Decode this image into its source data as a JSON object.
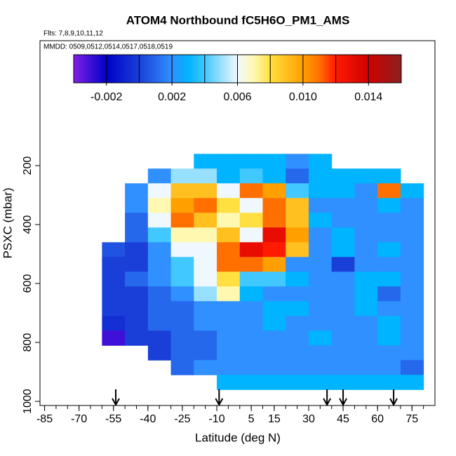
{
  "chart_data": {
    "type": "heatmap",
    "title": "ATOM4 Northbound fC5H6O_PM1_AMS",
    "subtitle": "Flts: 7,8,9,10,11,12",
    "annotation": "MMDD: 0509,0512,0514,0517,0518,0519",
    "x_label": "Latitude (deg N)",
    "y_label": "PSXC (mbar)",
    "xlim": [
      -87,
      85
    ],
    "ylim": [
      1014,
      -224
    ],
    "xticks": [
      -85,
      -70,
      -55,
      -40,
      -25,
      -10,
      5,
      15,
      30,
      45,
      60,
      75
    ],
    "xminorticks": [
      -85,
      -80,
      -75,
      -70,
      -65,
      -60,
      -55,
      -50,
      -45,
      -40,
      -35,
      -30,
      -25,
      -20,
      -15,
      -10,
      -5,
      0,
      5,
      10,
      15,
      20,
      25,
      30,
      35,
      40,
      45,
      50,
      55,
      60,
      65,
      70,
      75,
      80
    ],
    "yticks": [
      200,
      400,
      600,
      800,
      1000
    ],
    "x_edges": [
      -60,
      -50,
      -40,
      -30,
      -20,
      -10,
      0,
      10,
      20,
      30,
      40,
      50,
      60,
      70,
      80
    ],
    "y_edges": [
      160,
      210,
      260,
      310,
      360,
      410,
      460,
      510,
      560,
      610,
      660,
      710,
      760,
      810,
      860,
      910,
      960
    ],
    "z": [
      [
        null,
        null,
        null,
        null,
        0.003,
        0.003,
        0.003,
        0.003,
        0.002,
        0.003,
        null,
        null,
        null,
        null
      ],
      [
        null,
        null,
        0.002,
        0.005,
        0.005,
        0.003,
        0.004,
        0.003,
        0.001,
        0.003,
        0.003,
        0.003,
        0.003,
        null
      ],
      [
        null,
        0.002,
        0.006,
        0.009,
        0.009,
        0.006,
        0.011,
        0.01,
        0.004,
        0.003,
        0.003,
        0.002,
        0.011,
        0.003
      ],
      [
        null,
        0.002,
        0.007,
        0.01,
        0.011,
        0.008,
        0.006,
        0.011,
        0.009,
        0.002,
        0.002,
        0.002,
        0.003,
        0.002
      ],
      [
        null,
        0.001,
        0.006,
        0.011,
        0.009,
        0.007,
        0.008,
        0.011,
        0.009,
        0.003,
        0.002,
        0.002,
        0.002,
        0.002
      ],
      [
        null,
        0.001,
        0.004,
        0.007,
        0.007,
        0.009,
        0.006,
        0.013,
        0.01,
        0.002,
        0.003,
        0.002,
        0.002,
        0.002
      ],
      [
        0.0005,
        0,
        0.002,
        0.006,
        0.006,
        0.011,
        0.013,
        0.012,
        0.009,
        0.002,
        0.003,
        0.002,
        0.003,
        0.002
      ],
      [
        0,
        0,
        0.002,
        0.004,
        0.006,
        0.011,
        0.011,
        0.01,
        0.002,
        0.002,
        0,
        0.002,
        0.002,
        0.002
      ],
      [
        0,
        0.001,
        0.002,
        0.004,
        0.006,
        0.008,
        0.004,
        0.004,
        0.003,
        0.002,
        0.002,
        0.003,
        0.003,
        0.002
      ],
      [
        0,
        0,
        0.001,
        0.002,
        0.005,
        0.007,
        0.003,
        0.002,
        0.002,
        0.002,
        0.002,
        0.003,
        0.001,
        0.002
      ],
      [
        0,
        0,
        0.001,
        0.001,
        0.002,
        0.002,
        0.002,
        0.003,
        0.003,
        0.002,
        0.002,
        0.003,
        0.002,
        0.002
      ],
      [
        -0.0005,
        0,
        0.001,
        0.001,
        0.002,
        0.002,
        0.002,
        0.003,
        0.002,
        0.002,
        0.002,
        0.002,
        0.003,
        0.002
      ],
      [
        -0.003,
        0,
        0,
        0.001,
        0.001,
        0.002,
        0.002,
        0.002,
        0.002,
        0.003,
        0.002,
        0.002,
        0.003,
        0.002
      ],
      [
        null,
        null,
        0,
        0.001,
        0.001,
        0.002,
        0.002,
        0.002,
        0.002,
        0.002,
        0.002,
        0.002,
        0.002,
        0.002
      ],
      [
        null,
        null,
        null,
        0.001,
        0.002,
        0.002,
        0.002,
        0.002,
        0.002,
        0.002,
        0.002,
        0.002,
        0.002,
        0.001
      ],
      [
        null,
        null,
        null,
        null,
        null,
        0.003,
        0.003,
        0.003,
        0.003,
        0.003,
        0.003,
        0.003,
        0.003,
        0.003
      ]
    ],
    "markers_lat": [
      -54,
      -9,
      38,
      45,
      67
    ],
    "colorbar": {
      "lim": [
        -0.004,
        0.016
      ],
      "ticks": [
        -0.002,
        0.002,
        0.006,
        {
          "value": 0.01,
          "label": "0.010"
        },
        0.014
      ],
      "dividers": [
        -0.002,
        0,
        0.002,
        0.004,
        0.006,
        0.008,
        0.01,
        0.012,
        0.014
      ],
      "colorscale": [
        {
          "value": -0.004,
          "color": "#8020e8"
        },
        {
          "value": -0.002,
          "color": "#0000c8"
        },
        {
          "value": 0,
          "color": "#1a3fd8"
        },
        {
          "value": 0.002,
          "color": "#3090ff"
        },
        {
          "value": 0.003,
          "color": "#00b4ff"
        },
        {
          "value": 0.004,
          "color": "#40c8ff"
        },
        {
          "value": 0.006,
          "color": "#f0f8ff"
        },
        {
          "value": 0.007,
          "color": "#fff8b0"
        },
        {
          "value": 0.008,
          "color": "#ffe040"
        },
        {
          "value": 0.01,
          "color": "#ffa000"
        },
        {
          "value": 0.011,
          "color": "#ff7000"
        },
        {
          "value": 0.012,
          "color": "#ff1a00"
        },
        {
          "value": 0.014,
          "color": "#d00000"
        },
        {
          "value": 0.016,
          "color": "#8b2020"
        }
      ]
    }
  }
}
